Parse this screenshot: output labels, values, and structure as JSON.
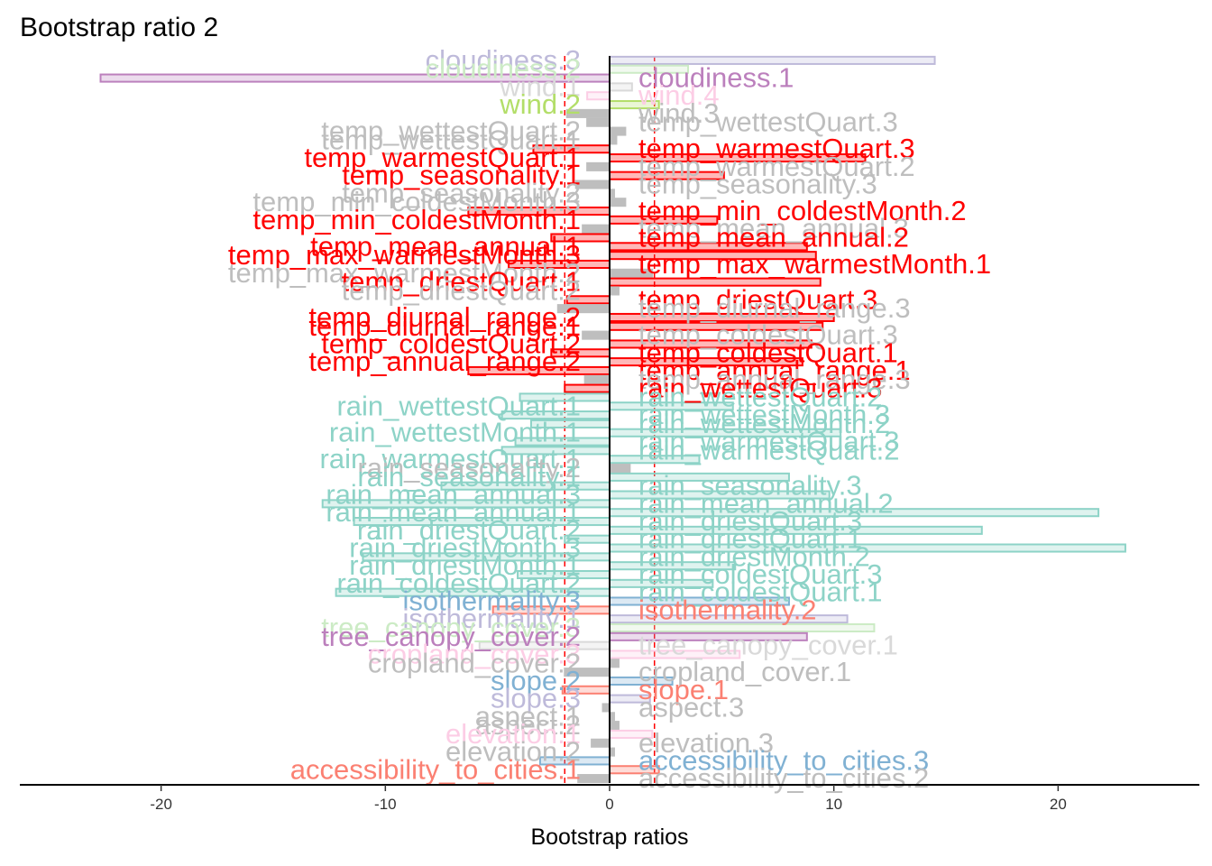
{
  "chart_data": {
    "type": "bar",
    "orientation": "horizontal",
    "title": "Bootstrap ratio 2",
    "xlabel": "Bootstrap ratios",
    "ylabel": "",
    "xlim": [
      -26.3,
      26.3
    ],
    "xticks": [
      -20,
      -10,
      0,
      10,
      20
    ],
    "xtick_labels": [
      "-20",
      "-10",
      "0",
      "10",
      "20"
    ],
    "threshold": 2,
    "grid": false,
    "legend": "none",
    "colors": {
      "significant_temp": "#ff0000",
      "nonsignificant": "#bebebe",
      "rain": "#8dd3c7",
      "accent_salmon": "#fb8072",
      "accent_blue": "#80b1d3",
      "accent_pink": "#fccde5",
      "accent_lavender": "#bebada",
      "accent_purple": "#bc80bd",
      "accent_green": "#b3de69",
      "accent_lightgreen": "#ccebc5",
      "threshold_line": "#ff0000",
      "axis": "#000000"
    },
    "bars": [
      {
        "label": "cloudiness.3",
        "value": 14.5,
        "color": "#bebada"
      },
      {
        "label": "cloudiness.2",
        "value": 3.5,
        "color": "#ccebc5"
      },
      {
        "label": "cloudiness.1",
        "value": -22.7,
        "color": "#bc80bd"
      },
      {
        "label": "wind.1",
        "value": 1.0,
        "color": "#d9d9d9"
      },
      {
        "label": "wind.4",
        "value": -1.0,
        "color": "#fccde5"
      },
      {
        "label": "wind.2",
        "value": 2.2,
        "color": "#b3de69"
      },
      {
        "label": "wind.3",
        "value": -1.9,
        "color": "#bebebe"
      },
      {
        "label": "temp_wettestQuart.3",
        "value": -1.0,
        "color": "#bebebe"
      },
      {
        "label": "temp_wettestQuart.2",
        "value": 0.7,
        "color": "#bebebe"
      },
      {
        "label": "temp_wettestQuart.1",
        "value": 0.3,
        "color": "#bebebe"
      },
      {
        "label": "temp_warmestQuart.3",
        "value": -3.4,
        "color": "#ff0000"
      },
      {
        "label": "temp_warmestQuart.1",
        "value": 11.4,
        "color": "#ff0000"
      },
      {
        "label": "temp_warmestQuart.2",
        "value": -1.0,
        "color": "#bebebe"
      },
      {
        "label": "temp_seasonality.1",
        "value": 5.1,
        "color": "#ff0000"
      },
      {
        "label": "temp_seasonality.3",
        "value": -1.5,
        "color": "#bebebe"
      },
      {
        "label": "temp_seasonality.2",
        "value": 0.2,
        "color": "#bebebe"
      },
      {
        "label": "temp_min_coldestMonth.3",
        "value": 0.7,
        "color": "#bebebe"
      },
      {
        "label": "temp_min_coldestMonth.2",
        "value": -6.3,
        "color": "#ff0000"
      },
      {
        "label": "temp_min_coldestMonth.1",
        "value": 4.8,
        "color": "#ff0000"
      },
      {
        "label": "temp_mean_annual.3",
        "value": -1.2,
        "color": "#bebebe"
      },
      {
        "label": "temp_mean_annual.2",
        "value": -2.6,
        "color": "#ff0000"
      },
      {
        "label": "temp_mean_annual.1",
        "value": 8.8,
        "color": "#ff0000"
      },
      {
        "label": "temp_max_warmestMonth.3",
        "value": 9.2,
        "color": "#ff0000"
      },
      {
        "label": "temp_max_warmestMonth.1",
        "value": -4.5,
        "color": "#ff0000"
      },
      {
        "label": "temp_max_warmestMonth.2",
        "value": 1.9,
        "color": "#bebebe"
      },
      {
        "label": "temp_driestQuart.1",
        "value": 9.4,
        "color": "#ff0000"
      },
      {
        "label": "temp_driestQuart.2",
        "value": 0.4,
        "color": "#bebebe"
      },
      {
        "label": "temp_driestQuart.3",
        "value": -1.9,
        "color": "#ff0000"
      },
      {
        "label": "temp_diurnal_range.3",
        "value": -2.3,
        "color": "#bebebe"
      },
      {
        "label": "temp_diurnal_range.2",
        "value": 10.0,
        "color": "#ff0000"
      },
      {
        "label": "temp_diurnal_range.1",
        "value": 9.5,
        "color": "#ff0000"
      },
      {
        "label": "temp_coldestQuart.3",
        "value": -1.2,
        "color": "#bebebe"
      },
      {
        "label": "temp_coldestQuart.2",
        "value": 9.0,
        "color": "#ff0000"
      },
      {
        "label": "temp_coldestQuart.1",
        "value": -2.6,
        "color": "#ff0000"
      },
      {
        "label": "temp_annual_range.2",
        "value": 8.6,
        "color": "#ff0000"
      },
      {
        "label": "temp_annual_range.1",
        "value": -6.3,
        "color": "#ff0000"
      },
      {
        "label": "temp_annual_range.3",
        "value": -1.1,
        "color": "#bebebe"
      },
      {
        "label": "rain_wettestQuart.3",
        "value": -2.0,
        "color": "#ff0000"
      },
      {
        "label": "rain_wettestQuart.2",
        "value": -4.0,
        "color": "#8dd3c7"
      },
      {
        "label": "rain_wettestQuart.1",
        "value": 5.5,
        "color": "#8dd3c7"
      },
      {
        "label": "rain_wettestMonth.3",
        "value": -4.8,
        "color": "#8dd3c7"
      },
      {
        "label": "rain_wettestMonth.2",
        "value": -3.5,
        "color": "#8dd3c7"
      },
      {
        "label": "rain_wettestMonth.1",
        "value": 10.3,
        "color": "#8dd3c7"
      },
      {
        "label": "rain_warmestQuart.3",
        "value": -4.2,
        "color": "#8dd3c7"
      },
      {
        "label": "rain_warmestQuart.2",
        "value": -4.8,
        "color": "#8dd3c7"
      },
      {
        "label": "rain_warmestQuart.1",
        "value": 4.0,
        "color": "#8dd3c7"
      },
      {
        "label": "rain_seasonality.2",
        "value": 0.9,
        "color": "#bebebe"
      },
      {
        "label": "rain_seasonality.1",
        "value": 8.0,
        "color": "#8dd3c7"
      },
      {
        "label": "rain_seasonality.3",
        "value": -7.5,
        "color": "#8dd3c7"
      },
      {
        "label": "rain_mean_annual.3",
        "value": 9.8,
        "color": "#8dd3c7"
      },
      {
        "label": "rain_mean_annual.2",
        "value": -12.8,
        "color": "#8dd3c7"
      },
      {
        "label": "rain_mean_annual.1",
        "value": 21.8,
        "color": "#8dd3c7"
      },
      {
        "label": "rain_driestQuart.3",
        "value": -11.4,
        "color": "#8dd3c7"
      },
      {
        "label": "rain_driestQuart.2",
        "value": 16.6,
        "color": "#8dd3c7"
      },
      {
        "label": "rain_driestQuart.1",
        "value": -2.0,
        "color": "#8dd3c7"
      },
      {
        "label": "rain_driestMonth.3",
        "value": 23.0,
        "color": "#8dd3c7"
      },
      {
        "label": "rain_driestMonth.2",
        "value": -11.0,
        "color": "#8dd3c7"
      },
      {
        "label": "rain_driestMonth.1",
        "value": 5.6,
        "color": "#8dd3c7"
      },
      {
        "label": "rain_coldestQuart.3",
        "value": -4.1,
        "color": "#8dd3c7"
      },
      {
        "label": "rain_coldestQuart.2",
        "value": 4.6,
        "color": "#8dd3c7"
      },
      {
        "label": "rain_coldestQuart.1",
        "value": -12.2,
        "color": "#8dd3c7"
      },
      {
        "label": "isothermality.3",
        "value": 8.0,
        "color": "#80b1d3"
      },
      {
        "label": "isothermality.2",
        "value": -5.2,
        "color": "#fb8072"
      },
      {
        "label": "isothermality.1",
        "value": 10.6,
        "color": "#bebada"
      },
      {
        "label": "tree_canopy_cover.3",
        "value": 11.8,
        "color": "#ccebc5"
      },
      {
        "label": "tree_canopy_cover.2",
        "value": 8.8,
        "color": "#bc80bd"
      },
      {
        "label": "tree_canopy_cover.1",
        "value": -5.8,
        "color": "#d9d9d9"
      },
      {
        "label": "cropland_cover.3",
        "value": 5.8,
        "color": "#fccde5"
      },
      {
        "label": "cropland_cover.2",
        "value": 0.4,
        "color": "#bebebe"
      },
      {
        "label": "cropland_cover.1",
        "value": -2.0,
        "color": "#bebebe"
      },
      {
        "label": "slope.2",
        "value": 2.8,
        "color": "#80b1d3"
      },
      {
        "label": "slope.1",
        "value": -2.1,
        "color": "#fb8072"
      },
      {
        "label": "slope.3",
        "value": 1.8,
        "color": "#bebada"
      },
      {
        "label": "aspect.3",
        "value": -0.3,
        "color": "#bebebe"
      },
      {
        "label": "aspect.1",
        "value": 0.2,
        "color": "#bebebe"
      },
      {
        "label": "aspect.2",
        "value": 0.4,
        "color": "#bebebe"
      },
      {
        "label": "elevation.1",
        "value": 1.9,
        "color": "#fccde5"
      },
      {
        "label": "elevation.3",
        "value": -0.8,
        "color": "#bebebe"
      },
      {
        "label": "elevation.2",
        "value": 0.2,
        "color": "#bebebe"
      },
      {
        "label": "accessibility_to_cities.3",
        "value": -3.1,
        "color": "#80b1d3"
      },
      {
        "label": "accessibility_to_cities.1",
        "value": 2.2,
        "color": "#fb8072"
      },
      {
        "label": "accessibility_to_cities.2",
        "value": -1.4,
        "color": "#bebebe"
      }
    ]
  }
}
